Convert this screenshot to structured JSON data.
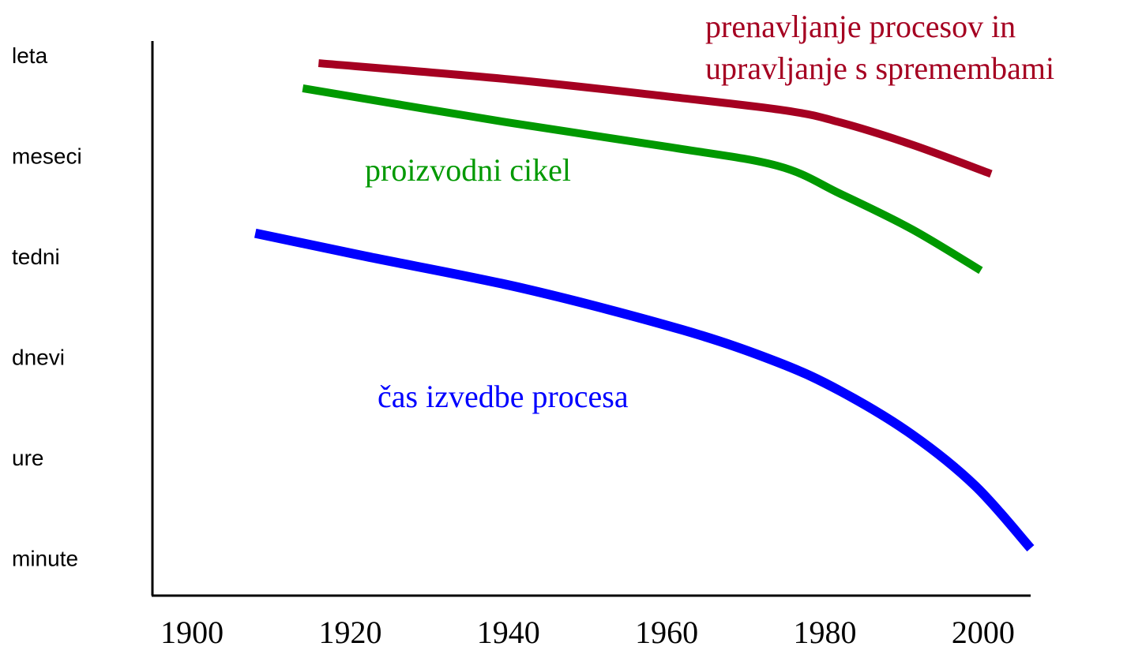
{
  "chart_data": {
    "type": "line",
    "xlim": [
      1895,
      2006
    ],
    "xticks": [
      1900,
      1920,
      1940,
      1960,
      1980,
      2000
    ],
    "ylim": [
      -0.35,
      5.16
    ],
    "yticks": [
      {
        "value": 5,
        "label": "leta"
      },
      {
        "value": 4,
        "label": "meseci"
      },
      {
        "value": 3,
        "label": "tedni"
      },
      {
        "value": 2,
        "label": "dnevi"
      },
      {
        "value": 1,
        "label": "ure"
      },
      {
        "value": 0,
        "label": "minute"
      }
    ],
    "grid": false,
    "series": [
      {
        "name": "prenavljanje procesov in upravljanje s spremembami",
        "color": "#a50021",
        "x": [
          1916,
          1940,
          1960,
          1975,
          1982,
          1991,
          2001
        ],
        "values": [
          4.94,
          4.78,
          4.61,
          4.47,
          4.35,
          4.13,
          3.84
        ]
      },
      {
        "name": "proizvodni cikel",
        "color": "#009900",
        "x": [
          1914,
          1940,
          1960,
          1974,
          1982,
          1991,
          1999.7
        ],
        "values": [
          4.69,
          4.35,
          4.11,
          3.92,
          3.64,
          3.29,
          2.88
        ]
      },
      {
        "name": "čas izvedbe procesa",
        "color": "#0000ff",
        "x": [
          1908,
          1922,
          1942,
          1962,
          1974,
          1982,
          1991,
          1999,
          2006
        ],
        "values": [
          3.25,
          3.02,
          2.7,
          2.29,
          1.97,
          1.68,
          1.25,
          0.74,
          0.12
        ]
      }
    ]
  }
}
